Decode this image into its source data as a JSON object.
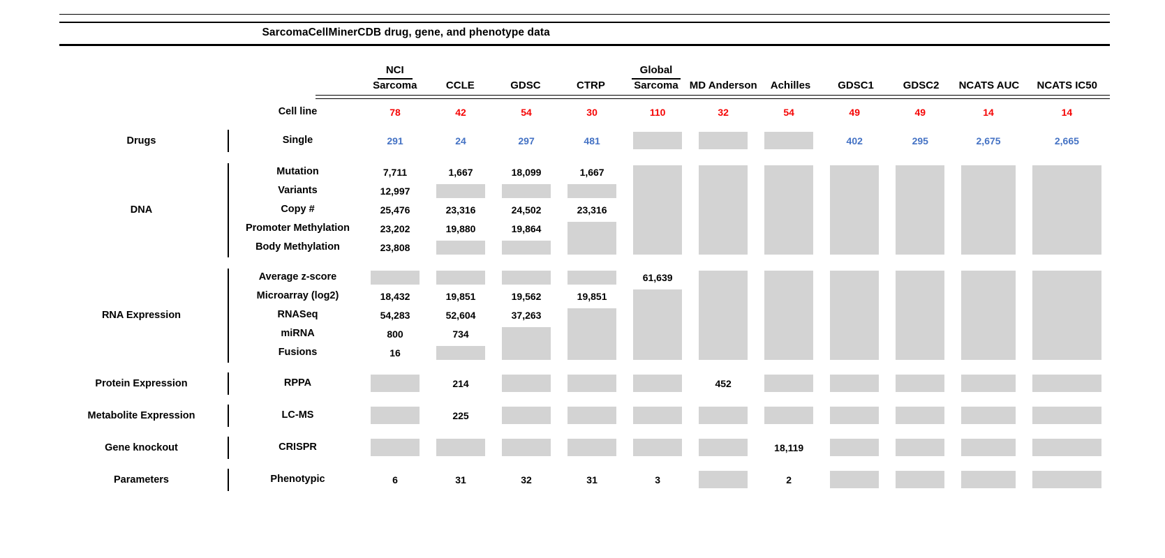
{
  "title": "SarcomaCellMinerCDB drug, gene, and phenotype data",
  "colors": {
    "cell_line_red": "#f50505",
    "drug_blue": "#4472c4",
    "missing_gray": "#d3d3d3",
    "rule_black": "#000000"
  },
  "columns": [
    {
      "line1": "NCI",
      "line2": "Sarcoma"
    },
    {
      "label": "CCLE"
    },
    {
      "label": "GDSC"
    },
    {
      "label": "CTRP"
    },
    {
      "line1": "Global",
      "line2": "Sarcoma"
    },
    {
      "label": "MD Anderson"
    },
    {
      "label": "Achilles"
    },
    {
      "label": "GDSC1"
    },
    {
      "label": "GDSC2"
    },
    {
      "label": "NCATS AUC"
    },
    {
      "label": "NCATS IC50"
    }
  ],
  "cell_line": {
    "label": "Cell line",
    "values": [
      "78",
      "42",
      "54",
      "30",
      "110",
      "32",
      "54",
      "49",
      "49",
      "14",
      "14"
    ]
  },
  "sections": [
    {
      "category": "Drugs",
      "style": "single",
      "rows": [
        "Single"
      ],
      "cols": [
        [
          {
            "t": "u",
            "v": "291"
          }
        ],
        [
          {
            "t": "u",
            "v": "24"
          }
        ],
        [
          {
            "t": "u",
            "v": "297"
          }
        ],
        [
          {
            "t": "u",
            "v": "481"
          }
        ],
        [
          {
            "t": "b"
          }
        ],
        [
          {
            "t": "b"
          }
        ],
        [
          {
            "t": "b"
          }
        ],
        [
          {
            "t": "u",
            "v": "402"
          }
        ],
        [
          {
            "t": "u",
            "v": "295"
          }
        ],
        [
          {
            "t": "u",
            "v": "2,675"
          }
        ],
        [
          {
            "t": "u",
            "v": "2,665"
          }
        ]
      ]
    },
    {
      "category": "DNA",
      "style": "multi",
      "rows": [
        "Mutation",
        "Variants",
        "Copy #",
        "Promoter Methylation",
        "Body Methylation"
      ],
      "cols": [
        [
          {
            "r": 1,
            "t": "n",
            "v": "7,711"
          },
          {
            "r": 2,
            "t": "n",
            "v": "12,997"
          },
          {
            "r": 3,
            "t": "n",
            "v": "25,476"
          },
          {
            "r": 4,
            "t": "n",
            "v": "23,202"
          },
          {
            "r": 5,
            "t": "n",
            "v": "23,808"
          }
        ],
        [
          {
            "r": 1,
            "t": "n",
            "v": "1,667"
          },
          {
            "r": 2,
            "t": "b"
          },
          {
            "r": 3,
            "t": "n",
            "v": "23,316"
          },
          {
            "r": 4,
            "t": "n",
            "v": "19,880"
          },
          {
            "r": 5,
            "t": "b"
          }
        ],
        [
          {
            "r": 1,
            "t": "n",
            "v": "18,099"
          },
          {
            "r": 2,
            "t": "b"
          },
          {
            "r": 3,
            "t": "n",
            "v": "24,502"
          },
          {
            "r": 4,
            "t": "n",
            "v": "19,864"
          },
          {
            "r": 5,
            "t": "b"
          }
        ],
        [
          {
            "r": 1,
            "t": "n",
            "v": "1,667"
          },
          {
            "r": 2,
            "t": "b"
          },
          {
            "r": 3,
            "t": "n",
            "v": "23,316"
          },
          {
            "r": 4,
            "t": "b",
            "s": 2
          }
        ],
        [
          {
            "r": 1,
            "t": "b",
            "s": 5
          }
        ],
        [
          {
            "r": 1,
            "t": "b",
            "s": 5
          }
        ],
        [
          {
            "r": 1,
            "t": "b",
            "s": 5
          }
        ],
        [
          {
            "r": 1,
            "t": "b",
            "s": 5
          }
        ],
        [
          {
            "r": 1,
            "t": "b",
            "s": 5
          }
        ],
        [
          {
            "r": 1,
            "t": "b",
            "s": 5
          }
        ],
        [
          {
            "r": 1,
            "t": "b",
            "s": 5
          }
        ]
      ]
    },
    {
      "category": "RNA Expression",
      "style": "multi",
      "rows": [
        "Average z-score",
        "Microarray (log2)",
        "RNASeq",
        "miRNA",
        "Fusions"
      ],
      "cols": [
        [
          {
            "r": 1,
            "t": "b"
          },
          {
            "r": 2,
            "t": "n",
            "v": "18,432"
          },
          {
            "r": 3,
            "t": "n",
            "v": "54,283"
          },
          {
            "r": 4,
            "t": "n",
            "v": "800"
          },
          {
            "r": 5,
            "t": "n",
            "v": "16"
          }
        ],
        [
          {
            "r": 1,
            "t": "b"
          },
          {
            "r": 2,
            "t": "n",
            "v": "19,851"
          },
          {
            "r": 3,
            "t": "n",
            "v": "52,604"
          },
          {
            "r": 4,
            "t": "n",
            "v": "734"
          },
          {
            "r": 5,
            "t": "b"
          }
        ],
        [
          {
            "r": 1,
            "t": "b"
          },
          {
            "r": 2,
            "t": "n",
            "v": "19,562"
          },
          {
            "r": 3,
            "t": "n",
            "v": "37,263"
          },
          {
            "r": 4,
            "t": "b",
            "s": 2
          }
        ],
        [
          {
            "r": 1,
            "t": "b"
          },
          {
            "r": 2,
            "t": "n",
            "v": "19,851"
          },
          {
            "r": 3,
            "t": "b",
            "s": 3
          }
        ],
        [
          {
            "r": 1,
            "t": "n",
            "v": "61,639"
          },
          {
            "r": 2,
            "t": "b",
            "s": 4
          }
        ],
        [
          {
            "r": 1,
            "t": "b",
            "s": 5
          }
        ],
        [
          {
            "r": 1,
            "t": "b",
            "s": 5
          }
        ],
        [
          {
            "r": 1,
            "t": "b",
            "s": 5
          }
        ],
        [
          {
            "r": 1,
            "t": "b",
            "s": 5
          }
        ],
        [
          {
            "r": 1,
            "t": "b",
            "s": 5
          }
        ],
        [
          {
            "r": 1,
            "t": "b",
            "s": 5
          }
        ]
      ]
    },
    {
      "category": "Protein Expression",
      "style": "single",
      "rows": [
        "RPPA"
      ],
      "cols": [
        [
          {
            "t": "b"
          }
        ],
        [
          {
            "t": "n",
            "v": "214"
          }
        ],
        [
          {
            "t": "b"
          }
        ],
        [
          {
            "t": "b"
          }
        ],
        [
          {
            "t": "b"
          }
        ],
        [
          {
            "t": "n",
            "v": "452"
          }
        ],
        [
          {
            "t": "b"
          }
        ],
        [
          {
            "t": "b"
          }
        ],
        [
          {
            "t": "b"
          }
        ],
        [
          {
            "t": "b"
          }
        ],
        [
          {
            "t": "b"
          }
        ]
      ]
    },
    {
      "category": "Metabolite Expression",
      "style": "single",
      "rows": [
        "LC-MS"
      ],
      "cols": [
        [
          {
            "t": "b"
          }
        ],
        [
          {
            "t": "n",
            "v": "225"
          }
        ],
        [
          {
            "t": "b"
          }
        ],
        [
          {
            "t": "b"
          }
        ],
        [
          {
            "t": "b"
          }
        ],
        [
          {
            "t": "b"
          }
        ],
        [
          {
            "t": "b"
          }
        ],
        [
          {
            "t": "b"
          }
        ],
        [
          {
            "t": "b"
          }
        ],
        [
          {
            "t": "b"
          }
        ],
        [
          {
            "t": "b"
          }
        ]
      ]
    },
    {
      "category": "Gene knockout",
      "style": "single",
      "rows": [
        "CRISPR"
      ],
      "cols": [
        [
          {
            "t": "b"
          }
        ],
        [
          {
            "t": "b"
          }
        ],
        [
          {
            "t": "b"
          }
        ],
        [
          {
            "t": "b"
          }
        ],
        [
          {
            "t": "b"
          }
        ],
        [
          {
            "t": "b"
          }
        ],
        [
          {
            "t": "n",
            "v": "18,119"
          }
        ],
        [
          {
            "t": "b"
          }
        ],
        [
          {
            "t": "b"
          }
        ],
        [
          {
            "t": "b"
          }
        ],
        [
          {
            "t": "b"
          }
        ]
      ]
    },
    {
      "category": "Parameters",
      "style": "single",
      "rows": [
        "Phenotypic"
      ],
      "cols": [
        [
          {
            "t": "n",
            "v": "6"
          }
        ],
        [
          {
            "t": "n",
            "v": "31"
          }
        ],
        [
          {
            "t": "n",
            "v": "32"
          }
        ],
        [
          {
            "t": "n",
            "v": "31"
          }
        ],
        [
          {
            "t": "n",
            "v": "3"
          }
        ],
        [
          {
            "t": "b"
          }
        ],
        [
          {
            "t": "n",
            "v": "2"
          }
        ],
        [
          {
            "t": "b"
          }
        ],
        [
          {
            "t": "b"
          }
        ],
        [
          {
            "t": "b"
          }
        ],
        [
          {
            "t": "b"
          }
        ]
      ]
    }
  ]
}
